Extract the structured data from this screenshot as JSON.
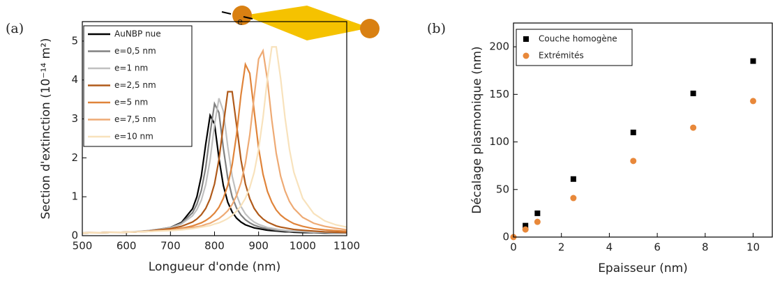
{
  "chart_data": [
    {
      "type": "line",
      "panel_label": "(a)",
      "annotation": "e",
      "xlabel": "Longueur d'onde (nm)",
      "ylabel": "Section d'extinction (10⁻¹⁴ m²)",
      "xlim": [
        500,
        1100
      ],
      "xticks": [
        500,
        600,
        700,
        800,
        900,
        1000,
        1100
      ],
      "ylim": [
        0,
        5.5
      ],
      "yticks": [
        0,
        1,
        2,
        3,
        4,
        5
      ],
      "legend": "upper left",
      "x": [
        500,
        550,
        600,
        625,
        650,
        700,
        725,
        750,
        760,
        770,
        780,
        790,
        800,
        810,
        820,
        830,
        840,
        850,
        860,
        870,
        880,
        890,
        900,
        910,
        920,
        930,
        940,
        950,
        960,
        970,
        980,
        1000,
        1025,
        1050,
        1075,
        1100
      ],
      "series": [
        {
          "name": "AuNBP nue",
          "color": "#000000",
          "values": [
            0.07,
            0.08,
            0.09,
            0.1,
            0.12,
            0.21,
            0.34,
            0.69,
            1.0,
            1.53,
            2.35,
            3.09,
            2.87,
            1.99,
            1.29,
            0.86,
            0.61,
            0.45,
            0.35,
            0.28,
            0.24,
            0.2,
            0.18,
            0.16,
            0.14,
            0.13,
            0.12,
            0.11,
            0.1,
            0.1,
            0.09,
            0.08,
            0.08,
            0.07,
            0.07,
            0.07
          ]
        },
        {
          "name": "e=0,5 nm",
          "color": "#808080",
          "values": [
            0.07,
            0.08,
            0.09,
            0.1,
            0.13,
            0.21,
            0.32,
            0.59,
            0.81,
            1.16,
            1.75,
            2.63,
            3.39,
            3.16,
            2.25,
            1.48,
            1.0,
            0.71,
            0.53,
            0.41,
            0.33,
            0.27,
            0.23,
            0.2,
            0.18,
            0.16,
            0.14,
            0.13,
            0.12,
            0.11,
            0.11,
            0.1,
            0.09,
            0.08,
            0.07,
            0.07
          ]
        },
        {
          "name": "e=1 nm",
          "color": "#c0c0c0",
          "values": [
            0.07,
            0.08,
            0.09,
            0.11,
            0.13,
            0.2,
            0.3,
            0.51,
            0.67,
            0.91,
            1.31,
            1.95,
            2.85,
            3.53,
            3.2,
            2.29,
            1.53,
            1.05,
            0.75,
            0.56,
            0.44,
            0.35,
            0.29,
            0.25,
            0.21,
            0.19,
            0.17,
            0.15,
            0.14,
            0.13,
            0.12,
            0.11,
            0.09,
            0.09,
            0.08,
            0.07
          ]
        },
        {
          "name": "e=2,5 nm",
          "color": "#b05a1a",
          "values": [
            0.07,
            0.08,
            0.09,
            0.1,
            0.12,
            0.18,
            0.24,
            0.35,
            0.43,
            0.54,
            0.7,
            0.95,
            1.33,
            1.95,
            2.84,
            3.7,
            3.7,
            2.84,
            1.95,
            1.33,
            0.95,
            0.7,
            0.54,
            0.43,
            0.35,
            0.3,
            0.25,
            0.22,
            0.2,
            0.18,
            0.16,
            0.14,
            0.12,
            0.1,
            0.09,
            0.08
          ]
        },
        {
          "name": "e=5 nm",
          "color": "#e0843a",
          "values": [
            0.07,
            0.08,
            0.09,
            0.1,
            0.11,
            0.15,
            0.19,
            0.25,
            0.29,
            0.33,
            0.39,
            0.47,
            0.58,
            0.73,
            0.96,
            1.29,
            1.82,
            2.6,
            3.62,
            4.4,
            4.17,
            3.2,
            2.25,
            1.58,
            1.14,
            0.86,
            0.66,
            0.53,
            0.44,
            0.37,
            0.31,
            0.24,
            0.18,
            0.15,
            0.13,
            0.11
          ]
        },
        {
          "name": "e=7,5 nm",
          "color": "#eeaa74",
          "values": [
            0.07,
            0.08,
            0.09,
            0.1,
            0.11,
            0.14,
            0.17,
            0.21,
            0.23,
            0.25,
            0.29,
            0.32,
            0.38,
            0.44,
            0.53,
            0.64,
            0.8,
            1.03,
            1.36,
            1.86,
            2.59,
            3.58,
            4.54,
            4.75,
            4.0,
            2.97,
            2.12,
            1.53,
            1.15,
            0.88,
            0.7,
            0.47,
            0.32,
            0.24,
            0.19,
            0.15
          ]
        },
        {
          "name": "e=10 nm",
          "color": "#f8e2bc",
          "values": [
            0.07,
            0.08,
            0.09,
            0.1,
            0.11,
            0.13,
            0.15,
            0.18,
            0.2,
            0.22,
            0.24,
            0.26,
            0.3,
            0.33,
            0.38,
            0.44,
            0.52,
            0.63,
            0.77,
            0.96,
            1.24,
            1.63,
            2.22,
            3.03,
            4.04,
            4.85,
            4.85,
            4.04,
            3.03,
            2.22,
            1.63,
            0.96,
            0.57,
            0.38,
            0.28,
            0.22
          ]
        }
      ]
    },
    {
      "type": "scatter",
      "panel_label": "(b)",
      "xlabel": "Epaisseur (nm)",
      "ylabel": "Décalage plasmonique (nm)",
      "xlim": [
        0,
        10.8
      ],
      "xticks": [
        0,
        2,
        4,
        6,
        8,
        10
      ],
      "ylim": [
        0,
        225
      ],
      "yticks": [
        0,
        50,
        100,
        150,
        200
      ],
      "legend": "upper left",
      "series": [
        {
          "name": "Couche homogène",
          "color": "#000000",
          "marker": "square",
          "x": [
            0.5,
            1,
            2.5,
            5,
            7.5,
            10
          ],
          "values": [
            12,
            25,
            61,
            110,
            151,
            185
          ]
        },
        {
          "name": "Extrémités",
          "color": "#e8883a",
          "marker": "circle",
          "x": [
            0,
            0.5,
            1,
            2.5,
            5,
            7.5,
            10
          ],
          "values": [
            0,
            8,
            16,
            41,
            80,
            115,
            143
          ]
        }
      ]
    }
  ]
}
